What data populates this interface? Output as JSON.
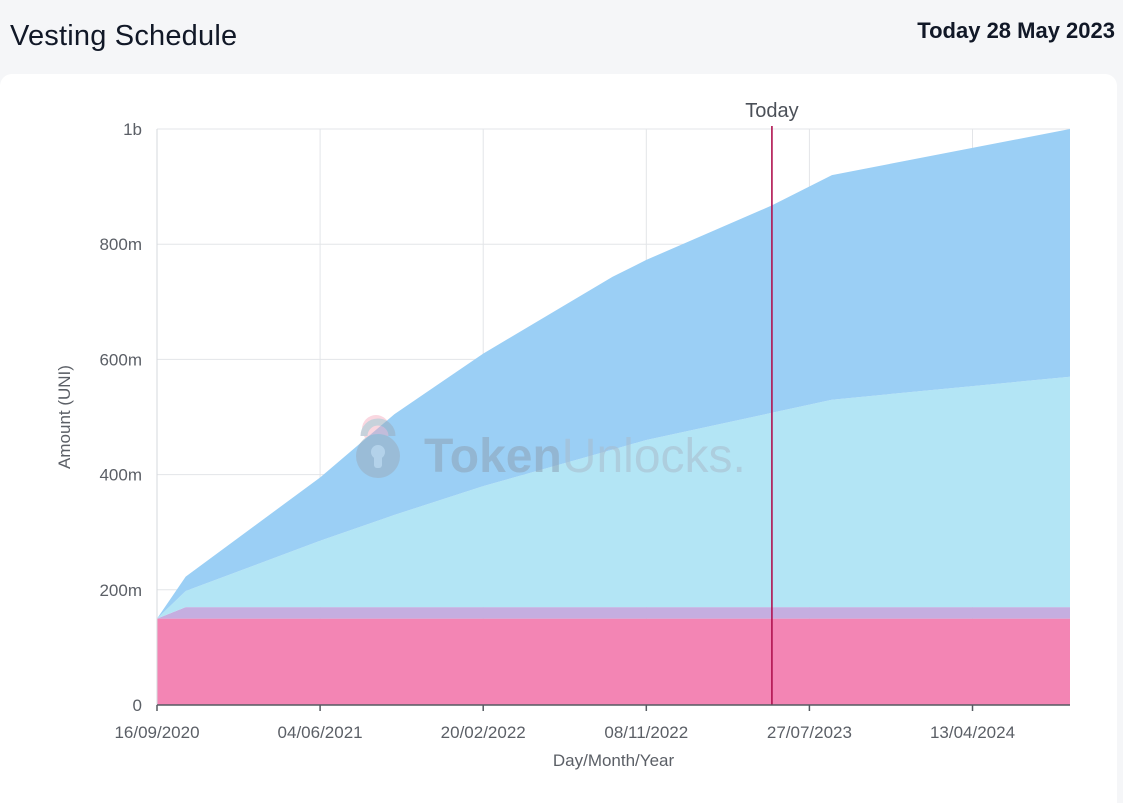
{
  "header": {
    "title": "Vesting Schedule",
    "today_text": "Today 28 May 2023"
  },
  "watermark": {
    "bold": "Token",
    "light": "Unlocks."
  },
  "chart_data": {
    "type": "area",
    "stacked": true,
    "xlabel": "Day/Month/Year",
    "ylabel": "Amount (UNI)",
    "x_ticks": [
      "16/09/2020",
      "04/06/2021",
      "20/02/2022",
      "08/11/2022",
      "27/07/2023",
      "13/04/2024"
    ],
    "y_ticks": [
      {
        "value": 0,
        "label": "0"
      },
      {
        "value": 200000000,
        "label": "200m"
      },
      {
        "value": 400000000,
        "label": "400m"
      },
      {
        "value": 600000000,
        "label": "600m"
      },
      {
        "value": 800000000,
        "label": "800m"
      },
      {
        "value": 1000000000,
        "label": "1b"
      }
    ],
    "xlim": [
      "2020-09-16",
      "2024-09-16"
    ],
    "ylim": [
      0,
      1000000000
    ],
    "grid": true,
    "marker": {
      "date": "2023-05-28",
      "label": "Today"
    },
    "series": [
      {
        "color": "#f385b4",
        "points": [
          [
            "2020-09-16",
            150000000
          ],
          [
            "2024-09-16",
            150000000
          ]
        ]
      },
      {
        "color": "#c5aee0",
        "points": [
          [
            "2020-09-16",
            0
          ],
          [
            "2020-11-01",
            20000000
          ],
          [
            "2024-09-16",
            20000000
          ]
        ]
      },
      {
        "color": "#b3e5f5",
        "points": [
          [
            "2020-09-16",
            0
          ],
          [
            "2020-11-01",
            28000000
          ],
          [
            "2021-06-04",
            115000000
          ],
          [
            "2021-10-01",
            160000000
          ],
          [
            "2022-02-20",
            210000000
          ],
          [
            "2022-11-08",
            290000000
          ],
          [
            "2023-09-01",
            360000000
          ],
          [
            "2024-09-16",
            400000000
          ]
        ]
      },
      {
        "color": "#9bcff5",
        "points": [
          [
            "2020-09-16",
            0
          ],
          [
            "2020-11-01",
            25000000
          ],
          [
            "2021-06-04",
            110000000
          ],
          [
            "2021-10-01",
            175000000
          ],
          [
            "2022-02-20",
            230000000
          ],
          [
            "2022-09-15",
            300000000
          ],
          [
            "2023-05-28",
            360000000
          ],
          [
            "2023-09-01",
            390000000
          ],
          [
            "2024-09-16",
            430000000
          ]
        ]
      }
    ]
  }
}
